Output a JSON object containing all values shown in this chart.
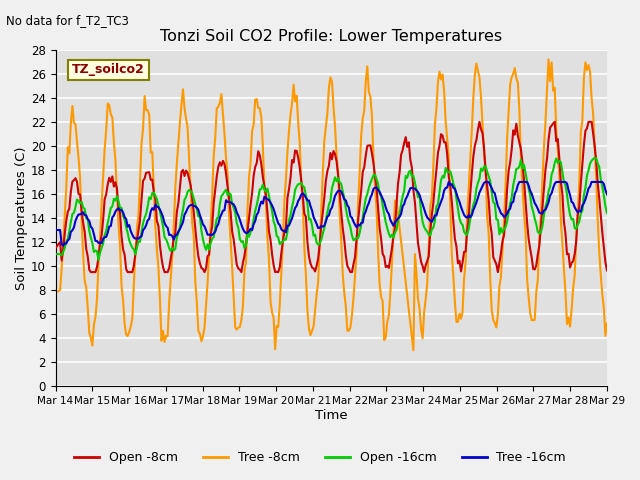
{
  "title": "Tonzi Soil CO2 Profile: Lower Temperatures",
  "subtitle": "No data for f_T2_TC3",
  "xlabel": "Time",
  "ylabel": "Soil Temperatures (C)",
  "legend_label": "TZ_soilco2",
  "x_tick_labels": [
    "Mar 14",
    "Mar 15",
    "Mar 16",
    "Mar 17",
    "Mar 18",
    "Mar 19",
    "Mar 20",
    "Mar 21",
    "Mar 22",
    "Mar 23",
    "Mar 24",
    "Mar 25",
    "Mar 26",
    "Mar 27",
    "Mar 28",
    "Mar 29"
  ],
  "ylim": [
    0,
    28
  ],
  "yticks": [
    0,
    2,
    4,
    6,
    8,
    10,
    12,
    14,
    16,
    18,
    20,
    22,
    24,
    26,
    28
  ],
  "colors": {
    "open8": "#cc0000",
    "tree8": "#ff9900",
    "open16": "#00cc00",
    "tree16": "#0000cc"
  },
  "fig_bg": "#f0f0f0",
  "plot_bg": "#e0e0e0",
  "line_width": 1.5,
  "n_days": 15,
  "pts_per_day": 24
}
